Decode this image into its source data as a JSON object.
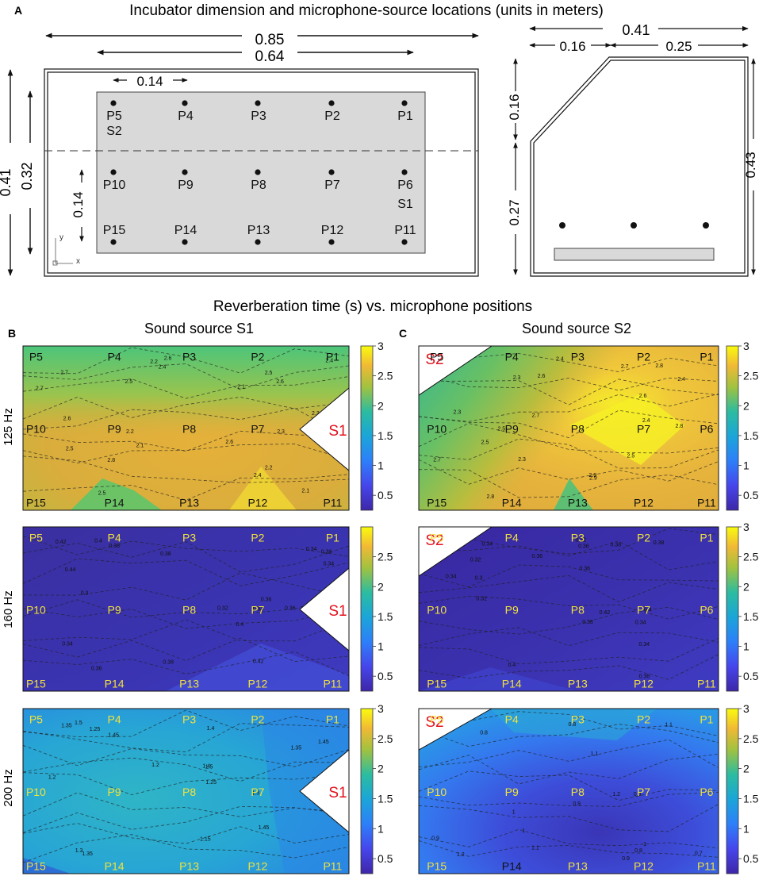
{
  "panelA": {
    "letter": "A",
    "title": "Incubator dimension and microphone-source locations  (units in meters)",
    "top_view": {
      "outer_width": "0.85",
      "inner_width": "0.64",
      "spacing_x": "0.14",
      "outer_height": "0.41",
      "inner_height": "0.32",
      "spacing_y": "0.14",
      "axis_y": "y",
      "axis_x": "x",
      "rows": [
        [
          "P5",
          "P4",
          "P3",
          "P2",
          "P1"
        ],
        [
          "P10",
          "P9",
          "P8",
          "P7",
          "P6"
        ],
        [
          "P15",
          "P14",
          "P13",
          "P12",
          "P11"
        ]
      ],
      "source_top": "S2",
      "source_mid": "S1"
    },
    "side_view": {
      "total_width": "0.41",
      "left_width": "0.16",
      "right_width": "0.25",
      "slant_height": "0.16",
      "lower_height": "0.27",
      "total_height": "0.43"
    }
  },
  "panelB": {
    "letter": "B",
    "subtitle": "Sound source S1",
    "source": "S1"
  },
  "panelC": {
    "letter": "C",
    "subtitle": "Sound source S2",
    "source": "S2"
  },
  "section_title": "Reverberation time (s) vs. microphone positions",
  "frequencies": [
    "125 Hz",
    "160 Hz",
    "200 Hz"
  ],
  "colorbar_ticks": {
    "set_a": [
      "3",
      "2.5",
      "2",
      "1.5",
      "1",
      "0.5"
    ],
    "set_b": [
      "2.5",
      "2",
      "1.5",
      "1",
      "0.5"
    ]
  },
  "point_labels": [
    "P1",
    "P2",
    "P3",
    "P4",
    "P5",
    "P6",
    "P7",
    "P8",
    "P9",
    "P10",
    "P11",
    "P12",
    "P13",
    "P14",
    "P15"
  ],
  "contour_labels": {
    "b125": [
      "2.1",
      "2.1",
      "2.1",
      "2.2",
      "2.2",
      "2.3",
      "2.3",
      "2.4",
      "2.4",
      "2.5",
      "2.5",
      "2.6",
      "2.6",
      "2.5",
      "2.4",
      "2.3",
      "2.2",
      "2.6",
      "2.7",
      "2.6",
      "2.5",
      "2.8",
      "2.7",
      "2.6"
    ],
    "c125": [
      "2.5",
      "2.3",
      "2.3",
      "2.4",
      "2.5",
      "2.6",
      "2.7",
      "2.8",
      "2.9",
      "2.8",
      "2.9",
      "2.7",
      "2.6",
      "2.6",
      "2.7",
      "2.8",
      "2.5",
      "2.4",
      "2.3",
      "2.4"
    ],
    "b160": [
      "0.3",
      "0.34",
      "0.34",
      "0.32",
      "0.34",
      "0.34",
      "0.36",
      "0.38",
      "0.38",
      "0.4",
      "0.42",
      "0.44",
      "0.38",
      "0.36",
      "0.38",
      "0.36",
      "0.4",
      "0.42"
    ],
    "c160": [
      "0.34",
      "0.32",
      "0.3",
      "0.36",
      "0.34",
      "0.32",
      "0.36",
      "0.38",
      "0.4",
      "0.34",
      "0.36",
      "0.38",
      "0.36",
      "0.34",
      "0.32",
      "0.4",
      "0.42",
      "0.38"
    ],
    "b200": [
      "1.45",
      "1.35",
      "1.4",
      "1.45",
      "1.5",
      "1.45",
      "1.4",
      "1.35",
      "1.3",
      "1.25",
      "1.2",
      "1.15",
      "1.5",
      "1.45",
      "1.35",
      "1.3",
      "1.25",
      "1.2"
    ],
    "c200": [
      "1.1",
      "1",
      "0.9",
      "1.2",
      "1.1",
      "1",
      "0.9",
      "0.8",
      "0.7",
      "0.8",
      "0.9",
      "1",
      "0.9",
      "0.8",
      "1.1",
      "1.2"
    ]
  },
  "colors": {
    "viridis_low": "#3e26a8",
    "viridis_mid": "#2ab1ce",
    "viridis_high": "#f9fb0e",
    "source_label": "#e3121e",
    "panel_gray": "#d9d9d9"
  }
}
